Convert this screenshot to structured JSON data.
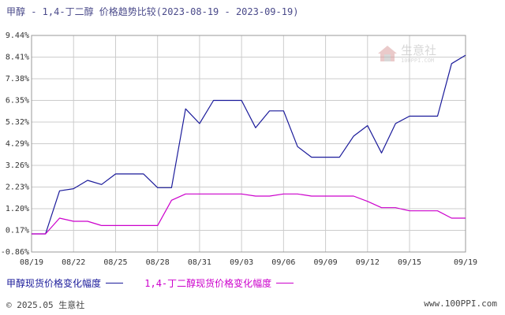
{
  "title": "甲醇 - 1,4-丁二醇 价格趋势比较(2023-08-19 - 2023-09-19)",
  "footer": {
    "copyright": "© 2025.05 生意社",
    "site": "www.100PPI.com"
  },
  "watermark": {
    "text": "生意社",
    "sub": "100PPI.COM"
  },
  "colors": {
    "series1": "#1a1a9a",
    "series2": "#cc00cc",
    "grid": "#cccccc",
    "axis": "#888888"
  },
  "chart_data": {
    "type": "line",
    "title": "甲醇 - 1,4-丁二醇 价格趋势比较(2023-08-19 - 2023-09-19)",
    "xlabel": "",
    "ylabel": "",
    "x_ticks": [
      "08/19",
      "08/22",
      "08/25",
      "08/28",
      "08/31",
      "09/03",
      "09/06",
      "09/09",
      "09/12",
      "09/15",
      "09/19"
    ],
    "y_ticks": [
      "9.44%",
      "8.41%",
      "7.38%",
      "6.35%",
      "5.32%",
      "4.29%",
      "3.26%",
      "2.23%",
      "1.20%",
      "0.17%",
      "-0.86%"
    ],
    "ylim": [
      -0.86,
      9.44
    ],
    "xlim": [
      "2023-08-19",
      "2023-09-19"
    ],
    "grid": true,
    "legend_position": "bottom",
    "x": [
      "2023-08-19",
      "2023-08-20",
      "2023-08-21",
      "2023-08-22",
      "2023-08-23",
      "2023-08-24",
      "2023-08-25",
      "2023-08-26",
      "2023-08-27",
      "2023-08-28",
      "2023-08-29",
      "2023-08-30",
      "2023-08-31",
      "2023-09-01",
      "2023-09-02",
      "2023-09-03",
      "2023-09-04",
      "2023-09-05",
      "2023-09-06",
      "2023-09-07",
      "2023-09-08",
      "2023-09-09",
      "2023-09-10",
      "2023-09-11",
      "2023-09-12",
      "2023-09-13",
      "2023-09-14",
      "2023-09-15",
      "2023-09-16",
      "2023-09-17",
      "2023-09-18",
      "2023-09-19"
    ],
    "series": [
      {
        "name": "甲醇现货价格变化幅度",
        "color": "#1a1a9a",
        "values": [
          0.0,
          0.0,
          2.05,
          2.15,
          2.55,
          2.35,
          2.85,
          2.85,
          2.85,
          2.2,
          2.2,
          5.95,
          5.25,
          6.35,
          6.35,
          6.35,
          5.05,
          5.85,
          5.85,
          4.15,
          3.65,
          3.65,
          3.65,
          4.65,
          5.15,
          3.85,
          5.25,
          5.6,
          5.6,
          5.6,
          8.1,
          8.5
        ]
      },
      {
        "name": "1,4-丁二醇现货价格变化幅度",
        "color": "#cc00cc",
        "values": [
          0.0,
          0.0,
          0.75,
          0.6,
          0.6,
          0.4,
          0.4,
          0.4,
          0.4,
          0.4,
          1.6,
          1.9,
          1.9,
          1.9,
          1.9,
          1.9,
          1.8,
          1.8,
          1.9,
          1.9,
          1.8,
          1.8,
          1.8,
          1.8,
          1.55,
          1.25,
          1.25,
          1.1,
          1.1,
          1.1,
          0.75,
          0.75
        ]
      }
    ]
  }
}
